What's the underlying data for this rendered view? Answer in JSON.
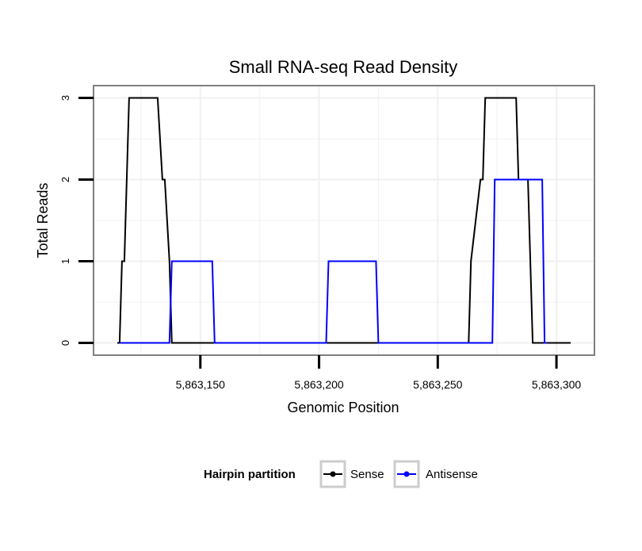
{
  "chart_data": {
    "type": "line",
    "title": "Small RNA-seq Read Density",
    "xlabel": "Genomic Position",
    "ylabel": "Total Reads",
    "xlim": [
      5863105,
      5863316
    ],
    "ylim": [
      -0.15,
      3.15
    ],
    "x_ticks": [
      5863150,
      5863200,
      5863250,
      5863300
    ],
    "x_tick_labels": [
      "5,863,150",
      "5,863,200",
      "5,863,250",
      "5,863,300"
    ],
    "y_ticks": [
      0,
      1,
      2,
      3
    ],
    "y_tick_labels": [
      "0",
      "1",
      "2",
      "3"
    ],
    "grid": true,
    "legend": {
      "title": "Hairpin partition",
      "position": "bottom",
      "entries": [
        {
          "label": "Sense",
          "color": "#000000"
        },
        {
          "label": "Antisense",
          "color": "#0000FF"
        }
      ]
    },
    "series": [
      {
        "name": "Sense",
        "color": "#000000",
        "x": [
          5863115,
          5863116,
          5863117,
          5863118,
          5863119,
          5863120,
          5863121,
          5863131,
          5863132,
          5863134,
          5863135,
          5863137,
          5863138,
          5863263,
          5863264,
          5863268,
          5863269,
          5863270,
          5863271,
          5863283,
          5863284,
          5863288,
          5863289,
          5863290,
          5863306
        ],
        "y": [
          0,
          0,
          1,
          1,
          2,
          3,
          3,
          3,
          3,
          2,
          2,
          1,
          0,
          0,
          1,
          2,
          2,
          3,
          3,
          3,
          2,
          2,
          1,
          0,
          0
        ]
      },
      {
        "name": "Antisense",
        "color": "#0000FF",
        "x": [
          5863116,
          5863137,
          5863138,
          5863139,
          5863155,
          5863156,
          5863157,
          5863203,
          5863204,
          5863205,
          5863224,
          5863225,
          5863226,
          5863273,
          5863274,
          5863275,
          5863294,
          5863295,
          5863296
        ],
        "y": [
          0,
          0,
          1,
          1,
          1,
          0,
          0,
          0,
          1,
          1,
          1,
          0,
          0,
          0,
          2,
          2,
          2,
          0,
          0
        ]
      }
    ]
  }
}
